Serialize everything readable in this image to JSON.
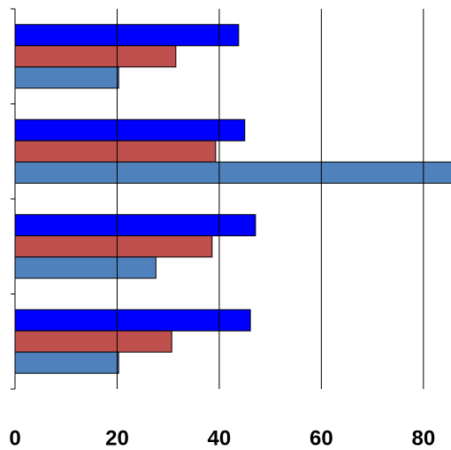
{
  "chart_data": {
    "type": "hbar",
    "categories": [
      null,
      null,
      null,
      null
    ],
    "series": [
      {
        "color": "#0000ff",
        "values": [
          43.8,
          45.0,
          47.1,
          46.1
        ]
      },
      {
        "color": "#c0504d",
        "values": [
          31.5,
          39.3,
          38.6,
          30.7
        ]
      },
      {
        "color": "#4f81bd",
        "values": [
          20.3,
          86,
          27.6,
          20.3
        ]
      }
    ],
    "xlim": [
      0,
      85.4
    ],
    "xticks": [
      0,
      20,
      40,
      60,
      80
    ],
    "grid": true
  }
}
